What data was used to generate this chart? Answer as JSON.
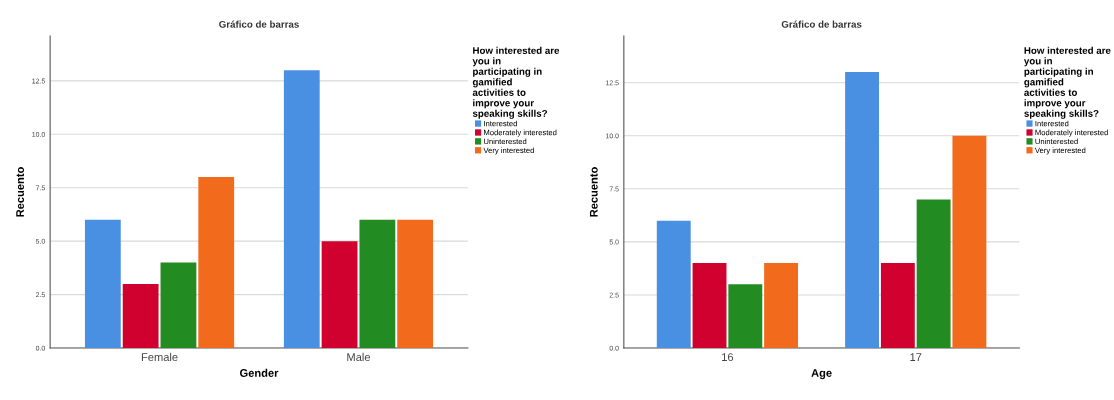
{
  "chart_data": [
    {
      "type": "bar",
      "title": "Gráfico de barras",
      "xlabel": "Gender",
      "ylabel": "Recuento",
      "legend_title": "How interested are you in participating in gamified activities to improve your speaking skills?",
      "categories": [
        "Female",
        "Male"
      ],
      "series": [
        {
          "name": "Interested",
          "color": "#4a90e2",
          "values": [
            6,
            13
          ]
        },
        {
          "name": "Moderately interested",
          "color": "#d0002f",
          "values": [
            3,
            5
          ]
        },
        {
          "name": "Uninterested",
          "color": "#228b22",
          "values": [
            4,
            6
          ]
        },
        {
          "name": "Very interested",
          "color": "#f26b1d",
          "values": [
            8,
            6
          ]
        }
      ],
      "ylim": [
        0,
        14.6
      ],
      "yticks": [
        {
          "value": 0,
          "label": "0.0"
        },
        {
          "value": 2.5,
          "label": "2.5"
        },
        {
          "value": 5,
          "label": "5.0"
        },
        {
          "value": 7.5,
          "label": "7.5"
        },
        {
          "value": 10,
          "label": "10.0"
        },
        {
          "value": 12.5,
          "label": "12.5"
        }
      ],
      "grid": "y",
      "legend": "right"
    },
    {
      "type": "bar",
      "title": "Gráfico de barras",
      "xlabel": "Age",
      "ylabel": "Recuento",
      "legend_title": "How interested are you in participating in gamified activities to improve your speaking skills?",
      "categories": [
        "16",
        "17"
      ],
      "series": [
        {
          "name": "Interested",
          "color": "#4a90e2",
          "values": [
            6,
            13
          ]
        },
        {
          "name": "Moderately interested",
          "color": "#d0002f",
          "values": [
            4,
            4
          ]
        },
        {
          "name": "Uninterested",
          "color": "#228b22",
          "values": [
            3,
            7
          ]
        },
        {
          "name": "Very interested",
          "color": "#f26b1d",
          "values": [
            4,
            10
          ]
        }
      ],
      "ylim": [
        0,
        14.7
      ],
      "yticks": [
        {
          "value": 0,
          "label": "0.0"
        },
        {
          "value": 2.5,
          "label": "2.5"
        },
        {
          "value": 5,
          "label": "5.0"
        },
        {
          "value": 7.5,
          "label": "7.5"
        },
        {
          "value": 10,
          "label": "10.0"
        },
        {
          "value": 12.5,
          "label": "12.5"
        }
      ],
      "grid": "y",
      "legend": "right"
    }
  ]
}
